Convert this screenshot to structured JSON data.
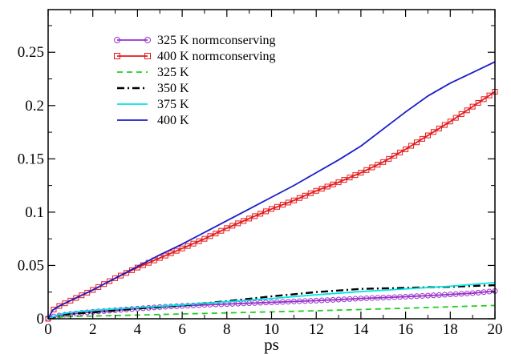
{
  "chart_data": {
    "type": "line",
    "title": "",
    "xlabel": "ps",
    "ylabel": "",
    "xlim": [
      0,
      20
    ],
    "ylim": [
      0,
      0.29
    ],
    "x_ticks": [
      0,
      2,
      4,
      6,
      8,
      10,
      12,
      14,
      16,
      18,
      20
    ],
    "y_ticks": [
      0,
      0.05,
      0.1,
      0.15,
      0.2,
      0.25
    ],
    "x_tick_labels": [
      "0",
      "2",
      "4",
      "6",
      "8",
      "10",
      "12",
      "14",
      "16",
      "18",
      "20"
    ],
    "y_tick_labels": [
      "0",
      "0.05",
      "0.1",
      "0.15",
      "0.2",
      "0.25"
    ],
    "grid": false,
    "legend_position": "top-left",
    "series": [
      {
        "name": "325 K normconserving",
        "color": "#9933cc",
        "style": "solid",
        "marker": "circle",
        "x": [
          0,
          0.2,
          0.5,
          1,
          2,
          3,
          4,
          5,
          6,
          7,
          8,
          9,
          10,
          11,
          12,
          13,
          14,
          15,
          16,
          17,
          18,
          19,
          20
        ],
        "y": [
          0,
          0.002,
          0.003,
          0.0045,
          0.0065,
          0.008,
          0.0095,
          0.011,
          0.012,
          0.013,
          0.0138,
          0.0146,
          0.0154,
          0.0162,
          0.017,
          0.018,
          0.019,
          0.0198,
          0.0207,
          0.0217,
          0.0228,
          0.024,
          0.026
        ]
      },
      {
        "name": "400 K normconserving",
        "color": "#e41a1c",
        "style": "solid",
        "marker": "square",
        "x": [
          0,
          0.2,
          0.5,
          1,
          2,
          3,
          4,
          5,
          6,
          7,
          8,
          9,
          10,
          11,
          12,
          13,
          14,
          15,
          16,
          17,
          18,
          19,
          20
        ],
        "y": [
          0,
          0.008,
          0.012,
          0.017,
          0.027,
          0.038,
          0.048,
          0.057,
          0.066,
          0.075,
          0.085,
          0.094,
          0.103,
          0.111,
          0.12,
          0.128,
          0.137,
          0.147,
          0.159,
          0.172,
          0.185,
          0.199,
          0.213
        ]
      },
      {
        "name": "325 K",
        "color": "#22cc22",
        "style": "dashed",
        "x": [
          0,
          0.5,
          1,
          2,
          4,
          6,
          8,
          10,
          12,
          14,
          16,
          18,
          20
        ],
        "y": [
          0,
          0.0015,
          0.002,
          0.0025,
          0.0035,
          0.0045,
          0.0055,
          0.0065,
          0.0075,
          0.0087,
          0.0099,
          0.0112,
          0.0125
        ]
      },
      {
        "name": "350 K",
        "color": "#000000",
        "style": "dashdot",
        "x": [
          0,
          0.5,
          1,
          2,
          4,
          6,
          8,
          10,
          12,
          14,
          16,
          18,
          20
        ],
        "y": [
          0,
          0.003,
          0.0045,
          0.006,
          0.0095,
          0.0125,
          0.0165,
          0.021,
          0.025,
          0.028,
          0.029,
          0.03,
          0.0315
        ]
      },
      {
        "name": "375 K",
        "color": "#00e5e5",
        "style": "solid",
        "x": [
          0,
          0.5,
          1,
          2,
          4,
          6,
          8,
          10,
          12,
          14,
          16,
          18,
          20
        ],
        "y": [
          0,
          0.004,
          0.006,
          0.008,
          0.0105,
          0.013,
          0.016,
          0.019,
          0.0225,
          0.0255,
          0.028,
          0.0305,
          0.034
        ]
      },
      {
        "name": "400 K",
        "color": "#1c1ccc",
        "style": "solid",
        "x": [
          0,
          0.2,
          0.5,
          1,
          2,
          3,
          4,
          5,
          6,
          7,
          8,
          9,
          10,
          11,
          12,
          13,
          14,
          15,
          16,
          17,
          18,
          19,
          20
        ],
        "y": [
          0,
          0.008,
          0.012,
          0.017,
          0.027,
          0.038,
          0.049,
          0.06,
          0.07,
          0.081,
          0.092,
          0.103,
          0.114,
          0.125,
          0.137,
          0.149,
          0.162,
          0.178,
          0.194,
          0.209,
          0.221,
          0.231,
          0.241
        ]
      }
    ]
  }
}
